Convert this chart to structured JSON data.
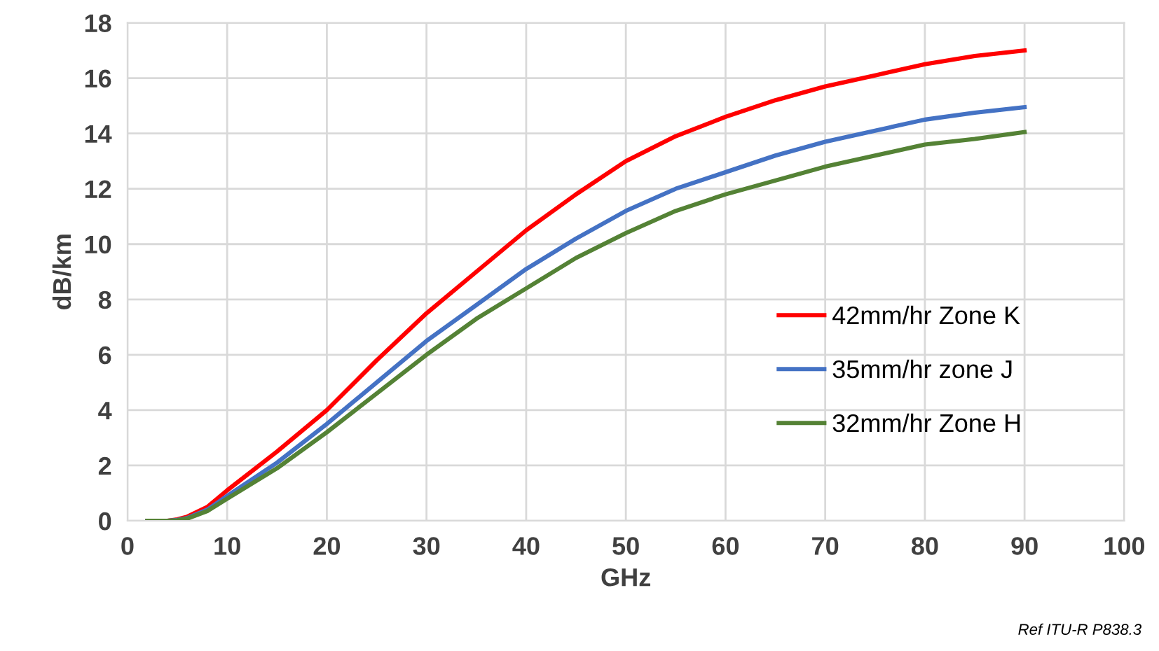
{
  "chart_data": {
    "type": "line",
    "xlabel": "GHz",
    "ylabel": "dB/km",
    "x": [
      2,
      4,
      5,
      6,
      8,
      10,
      15,
      20,
      25,
      30,
      35,
      40,
      45,
      50,
      55,
      60,
      65,
      70,
      75,
      80,
      85,
      90
    ],
    "series": [
      {
        "name": "42mm/hr Zone K",
        "color": "#ff0000",
        "values": [
          0,
          0,
          0.05,
          0.15,
          0.5,
          1.1,
          2.5,
          4.0,
          5.8,
          7.5,
          9.0,
          10.5,
          11.8,
          13.0,
          13.9,
          14.6,
          15.2,
          15.7,
          16.1,
          16.5,
          16.8,
          17.0
        ]
      },
      {
        "name": "35mm/hr zone J",
        "color": "#4472c4",
        "values": [
          0,
          0,
          0.03,
          0.1,
          0.4,
          0.9,
          2.1,
          3.5,
          5.0,
          6.5,
          7.8,
          9.1,
          10.2,
          11.2,
          12.0,
          12.6,
          13.2,
          13.7,
          14.1,
          14.5,
          14.75,
          14.95
        ]
      },
      {
        "name": "32mm/hr Zone H",
        "color": "#548235",
        "values": [
          0,
          0,
          0.02,
          0.08,
          0.35,
          0.8,
          1.9,
          3.2,
          4.6,
          6.0,
          7.3,
          8.4,
          9.5,
          10.4,
          11.2,
          11.8,
          12.3,
          12.8,
          13.2,
          13.6,
          13.8,
          14.05
        ]
      }
    ],
    "xlim": [
      0,
      100
    ],
    "xticks": [
      0,
      10,
      20,
      30,
      40,
      50,
      60,
      70,
      80,
      90,
      100
    ],
    "ylim": [
      0,
      18
    ],
    "yticks": [
      0,
      2,
      4,
      6,
      8,
      10,
      12,
      14,
      16,
      18
    ],
    "grid": true,
    "legend": "right",
    "marker": "none",
    "line_style": "solid",
    "annotations": [
      "Ref ITU-R P838.3"
    ]
  }
}
